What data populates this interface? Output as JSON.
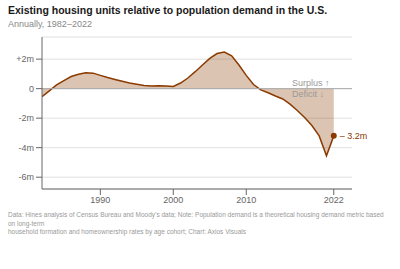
{
  "chart_data": {
    "type": "area",
    "title": "Existing housing units relative to population demand in the U.S.",
    "subtitle": "Annually, 1982–2022",
    "footnote": "Data: Hines analysis of Census Bureau and Moody’s data; Note: Population demand is a theoretical housing demand metric based on long-term\nhousehold formation and homeownership rates by age cohort; Chart: Axios Visuals",
    "x": [
      1982,
      1983,
      1984,
      1985,
      1986,
      1987,
      1988,
      1989,
      1990,
      1991,
      1992,
      1993,
      1994,
      1995,
      1996,
      1997,
      1998,
      1999,
      2000,
      2001,
      2002,
      2003,
      2004,
      2005,
      2006,
      2007,
      2008,
      2009,
      2010,
      2011,
      2012,
      2013,
      2014,
      2015,
      2016,
      2017,
      2018,
      2019,
      2020,
      2021,
      2022
    ],
    "values": [
      -0.55,
      -0.15,
      0.25,
      0.55,
      0.82,
      0.98,
      1.08,
      1.05,
      0.9,
      0.75,
      0.62,
      0.5,
      0.38,
      0.3,
      0.22,
      0.18,
      0.2,
      0.18,
      0.15,
      0.38,
      0.72,
      1.15,
      1.6,
      2.05,
      2.38,
      2.48,
      2.22,
      1.6,
      0.9,
      0.28,
      -0.08,
      -0.28,
      -0.5,
      -0.7,
      -1.05,
      -1.48,
      -1.95,
      -2.5,
      -3.2,
      -4.55,
      -3.2
    ],
    "color": "#8B3A00",
    "xlim": [
      1982,
      2024.5
    ],
    "xticks": [
      1990,
      2000,
      2010,
      2022
    ],
    "ylim": [
      -6.8,
      3.5
    ],
    "yticks": [
      {
        "value": -6,
        "label": "-6m"
      },
      {
        "value": -4,
        "label": "-4m"
      },
      {
        "value": -2,
        "label": "-2m"
      },
      0,
      {
        "value": 2,
        "label": "+2m"
      }
    ],
    "grid": true,
    "annotations": [
      {
        "text": "Surplus ↑",
        "x": 2016.0,
        "y": 0.38
      },
      {
        "text": "Deficit ↓",
        "x": 2016.0,
        "y": -0.35
      },
      {
        "text": "– 3.2m",
        "x": 2022,
        "y": -3.2
      }
    ]
  }
}
